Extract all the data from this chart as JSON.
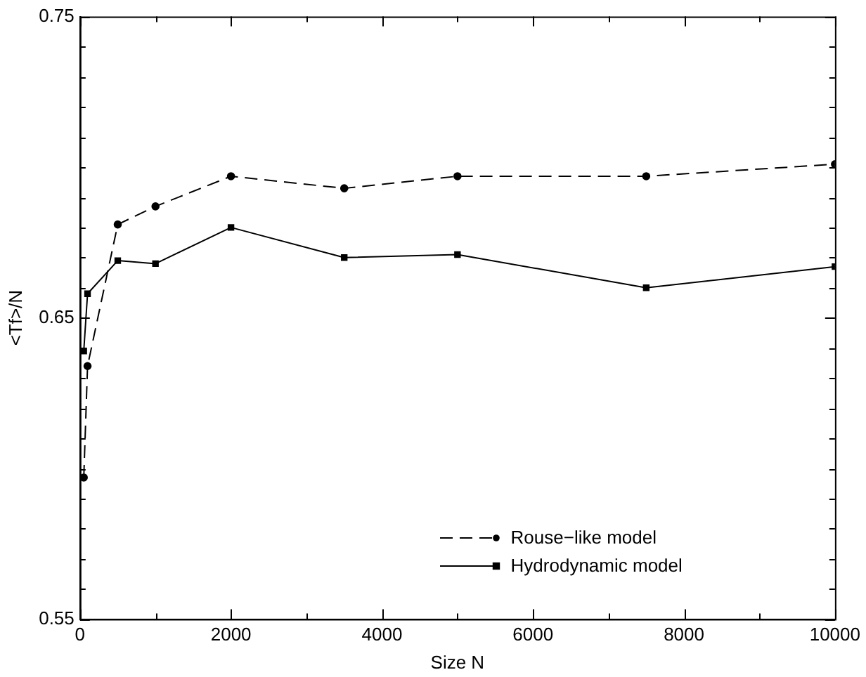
{
  "chart_data": {
    "type": "line",
    "xlabel": "Size N",
    "ylabel": "<Tf>/N",
    "x": [
      50,
      100,
      500,
      1000,
      2000,
      3500,
      5000,
      7500,
      10000
    ],
    "series": [
      {
        "name": "Rouse−like model",
        "color": "#000000",
        "marker": "circle",
        "line_style": "dashed",
        "values": [
          0.597,
          0.634,
          0.681,
          0.687,
          0.697,
          0.693,
          0.697,
          0.697,
          0.701
        ]
      },
      {
        "name": "Hydrodynamic model",
        "color": "#000000",
        "marker": "square",
        "line_style": "solid",
        "values": [
          0.639,
          0.658,
          0.669,
          0.668,
          0.68,
          0.67,
          0.671,
          0.66,
          0.667
        ]
      }
    ],
    "xlim": [
      0,
      10000
    ],
    "ylim": [
      0.55,
      0.75
    ],
    "xticks": [
      0,
      {
        "value": 1000,
        "label": null
      },
      2000,
      {
        "value": 3000,
        "label": null
      },
      4000,
      {
        "value": 5000,
        "label": null
      },
      6000,
      {
        "value": 7000,
        "label": null
      },
      8000,
      {
        "value": 9000,
        "label": null
      },
      10000
    ],
    "yticks": [
      {
        "value": 0.55,
        "label": "0.55"
      },
      {
        "value": 0.56,
        "label": null
      },
      {
        "value": 0.57,
        "label": null
      },
      {
        "value": 0.58,
        "label": null
      },
      {
        "value": 0.59,
        "label": null
      },
      {
        "value": 0.6,
        "label": null
      },
      {
        "value": 0.61,
        "label": null
      },
      {
        "value": 0.62,
        "label": null
      },
      {
        "value": 0.63,
        "label": null
      },
      {
        "value": 0.64,
        "label": null
      },
      {
        "value": 0.65,
        "label": "0.65"
      },
      {
        "value": 0.66,
        "label": null
      },
      {
        "value": 0.67,
        "label": null
      },
      {
        "value": 0.68,
        "label": null
      },
      {
        "value": 0.69,
        "label": null
      },
      {
        "value": 0.7,
        "label": null
      },
      {
        "value": 0.71,
        "label": null
      },
      {
        "value": 0.72,
        "label": null
      },
      {
        "value": 0.73,
        "label": null
      },
      {
        "value": 0.74,
        "label": null
      },
      {
        "value": 0.75,
        "label": "0.75"
      }
    ],
    "grid": false,
    "legend": "bottom right"
  }
}
